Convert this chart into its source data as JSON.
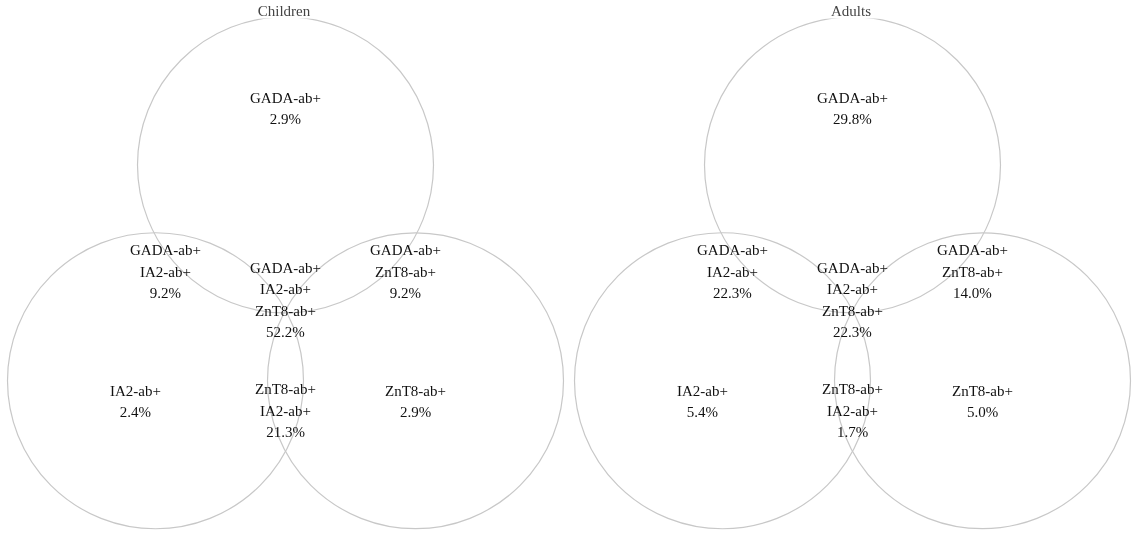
{
  "chart_data": [
    {
      "type": "other",
      "title": "Children",
      "categories": [
        "GADA-ab+",
        "GADA-ab+\nIA2-ab+",
        "GADA-ab+\nZnT8-ab+",
        "GADA-ab+\nIA2-ab+\nZnT8-ab+",
        "IA2-ab+",
        "ZnT8-ab+\nIA2-ab+",
        "ZnT8-ab+"
      ],
      "values": [
        2.9,
        9.2,
        9.2,
        52.2,
        2.4,
        21.3,
        2.9
      ],
      "value_labels": [
        "2.9%",
        "9.2%",
        "9.2%",
        "52.2%",
        "2.4%",
        "21.3%",
        "2.9%"
      ],
      "color": "#c8c8c8"
    },
    {
      "type": "other",
      "title": "Adults",
      "categories": [
        "GADA-ab+",
        "GADA-ab+\nIA2-ab+",
        "GADA-ab+\nZnT8-ab+",
        "GADA-ab+\nIA2-ab+\nZnT8-ab+",
        "IA2-ab+",
        "ZnT8-ab+\nIA2-ab+",
        "ZnT8-ab+"
      ],
      "values": [
        29.8,
        22.3,
        14.0,
        22.3,
        5.4,
        1.7,
        5.0
      ],
      "value_labels": [
        "29.8%",
        "22.3%",
        "14.0%",
        "22.3%",
        "5.4%",
        "1.7%",
        "5.0%"
      ],
      "color": "#c8c8c8"
    }
  ]
}
